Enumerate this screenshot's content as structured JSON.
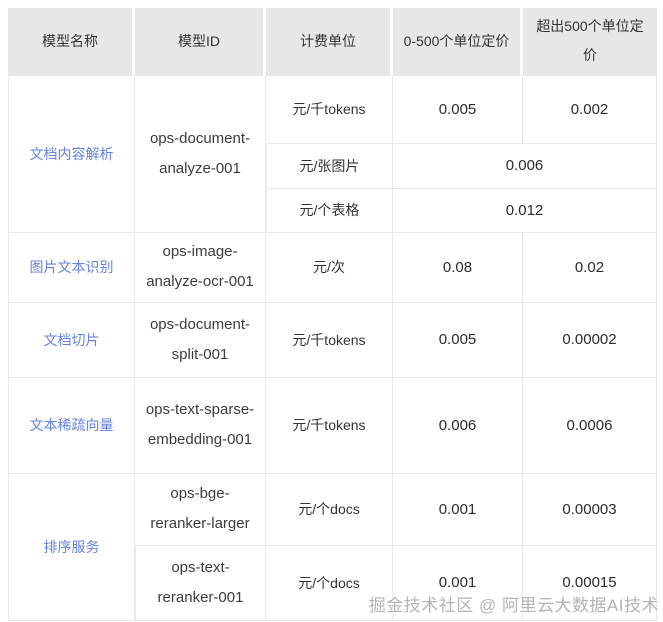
{
  "colors": {
    "link_blue": "#6482e1",
    "header_bg": "#e9e7e6",
    "border": "#e8e8e8",
    "text": "#333333",
    "watermark_gray": "#b3b3b3"
  },
  "table": {
    "headers": [
      "模型名称",
      "模型ID",
      "计费单位",
      "0-500个单位定价",
      "超出500个单位定价"
    ],
    "doc_analyze": {
      "name": "文档内容解析",
      "id": "ops-document-analyze-001",
      "rows": [
        {
          "unit": "元/千tokens",
          "tier1": "0.005",
          "tier2": "0.002"
        },
        {
          "unit": "元/张图片",
          "price": "0.006"
        },
        {
          "unit": "元/个表格",
          "price": "0.012"
        }
      ]
    },
    "image_ocr": {
      "name": "图片文本识别",
      "id": "ops-image-analyze-ocr-001",
      "unit": "元/次",
      "tier1": "0.08",
      "tier2": "0.02"
    },
    "doc_split": {
      "name": "文档切片",
      "id": "ops-document-split-001",
      "unit": "元/千tokens",
      "tier1": "0.005",
      "tier2": "0.00002"
    },
    "sparse_embedding": {
      "name": "文本稀疏向量",
      "id": "ops-text-sparse-embedding-001",
      "unit": "元/千tokens",
      "tier1": "0.006",
      "tier2": "0.0006"
    },
    "rerank": {
      "name": "排序服务",
      "rows": [
        {
          "id": "ops-bge-reranker-larger",
          "unit": "元/个docs",
          "tier1": "0.001",
          "tier2": "0.00003"
        },
        {
          "id": "ops-text-reranker-001",
          "unit": "元/个docs",
          "tier1": "0.001",
          "tier2": "0.00015"
        }
      ]
    }
  },
  "watermark": "掘金技术社区 @ 阿里云大数据AI技术"
}
